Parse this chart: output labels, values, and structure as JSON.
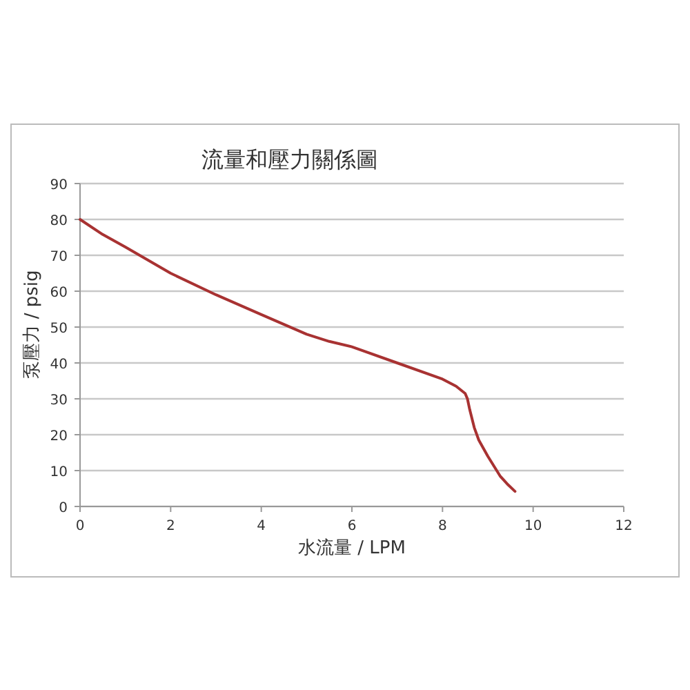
{
  "chart_data": {
    "type": "line",
    "title": "流量和壓力關係圖",
    "xlabel": "水流量 / LPM",
    "ylabel": "泵壓力 / psig",
    "xlim": [
      0,
      12
    ],
    "ylim": [
      0,
      90
    ],
    "xticks": [
      0,
      2,
      4,
      6,
      8,
      10,
      12
    ],
    "yticks": [
      0,
      10,
      20,
      30,
      40,
      50,
      60,
      70,
      80,
      90
    ],
    "grid": "y",
    "x": [
      0,
      0.5,
      1,
      2,
      3,
      4,
      5,
      5.5,
      6,
      7,
      8,
      8.3,
      8.5,
      8.55,
      8.6,
      8.7,
      8.8,
      9,
      9.27,
      9.45,
      9.6
    ],
    "series": [
      {
        "color": "#a83232",
        "values": [
          80,
          75.8,
          72.3,
          65,
          59,
          53.5,
          48,
          46,
          44.5,
          40,
          35.5,
          33.5,
          31.5,
          30,
          27,
          22,
          18.5,
          14,
          8.5,
          6,
          4.2
        ]
      }
    ]
  }
}
